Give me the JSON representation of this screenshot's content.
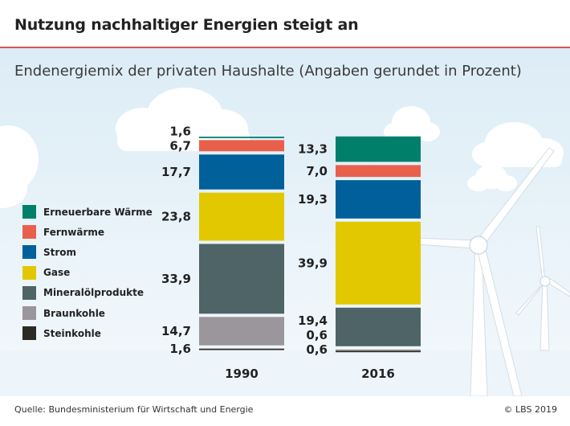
{
  "header": {
    "title": "Nutzung nachhaltiger Energien steigt an",
    "subtitle": "Endenergiemix der privaten Haushalte (Angaben gerundet in Prozent)"
  },
  "footer": {
    "source": "Quelle: Bundesministerium für Wirtschaft und Energie",
    "credit": "© LBS 2019"
  },
  "colors": {
    "accent_rule": "#d9534f",
    "panel_top": "#dcecf6",
    "panel_bottom": "#f4f9fc"
  },
  "chart_data": {
    "type": "bar",
    "stacked": true,
    "categories": [
      "1990",
      "2016"
    ],
    "legend_position": "left",
    "series": [
      {
        "name": "Steinkohle",
        "color": "#2b2b24",
        "values": [
          1.6,
          0.6
        ],
        "labels": [
          "1,6",
          "0,6"
        ]
      },
      {
        "name": "Braunkohle",
        "color": "#9b969b",
        "values": [
          14.7,
          0.6
        ],
        "labels": [
          "14,7",
          "0,6"
        ]
      },
      {
        "name": "Mineralölprodukte",
        "color": "#4f6467",
        "values": [
          33.9,
          19.4
        ],
        "labels": [
          "33,9",
          "19,4"
        ]
      },
      {
        "name": "Gase",
        "color": "#e2c800",
        "values": [
          23.8,
          39.9
        ],
        "labels": [
          "23,8",
          "39,9"
        ]
      },
      {
        "name": "Strom",
        "color": "#00609a",
        "values": [
          17.7,
          19.3
        ],
        "labels": [
          "17,7",
          "19,3"
        ]
      },
      {
        "name": "Fernwärme",
        "color": "#e8604c",
        "values": [
          6.7,
          7.0
        ],
        "labels": [
          "6,7",
          "7,0"
        ]
      },
      {
        "name": "Erneuerbare Wärme",
        "color": "#00806a",
        "values": [
          1.6,
          13.3
        ],
        "labels": [
          "1,6",
          "13,3"
        ]
      }
    ]
  }
}
